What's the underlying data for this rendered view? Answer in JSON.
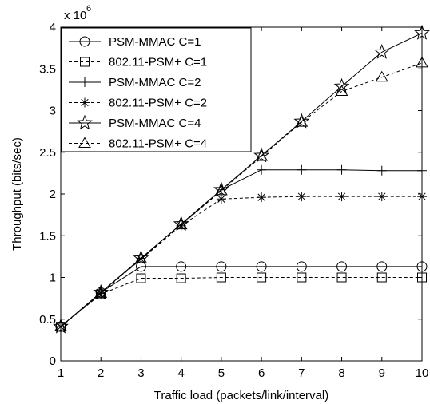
{
  "chart_data": {
    "type": "line",
    "xlabel": "Traffic load (packets/link/interval)",
    "ylabel": "Throughput (bits/sec)",
    "y_multiplier": "x 10",
    "y_multiplier_exp": "6",
    "xlim": [
      1,
      10
    ],
    "ylim": [
      0,
      4
    ],
    "x_ticks": [
      1,
      2,
      3,
      4,
      5,
      6,
      7,
      8,
      9,
      10
    ],
    "y_ticks": [
      0,
      0.5,
      1,
      1.5,
      2,
      2.5,
      3,
      3.5,
      4
    ],
    "y_tick_labels": [
      "0",
      "0.5",
      "1",
      "1.5",
      "2",
      "2.5",
      "3",
      "3.5",
      "4"
    ],
    "grid": false,
    "legend_position": "top-left",
    "x": [
      1,
      2,
      3,
      4,
      5,
      6,
      7,
      8,
      9,
      10
    ],
    "series": [
      {
        "name": "PSM-MMAC      C=1",
        "marker": "circle",
        "dash": "solid",
        "values": [
          0.41,
          0.82,
          1.13,
          1.13,
          1.13,
          1.13,
          1.13,
          1.13,
          1.13,
          1.13
        ]
      },
      {
        "name": "802.11-PSM+  C=1",
        "marker": "square",
        "dash": "dashed",
        "values": [
          0.41,
          0.8,
          0.99,
          0.99,
          1.0,
          1.0,
          1.0,
          1.0,
          1.0,
          1.0
        ]
      },
      {
        "name": "PSM-MMAC      C=2",
        "marker": "plus",
        "dash": "solid",
        "values": [
          0.41,
          0.82,
          1.23,
          1.64,
          2.05,
          2.29,
          2.29,
          2.29,
          2.28,
          2.28
        ]
      },
      {
        "name": "802.11-PSM+  C=2",
        "marker": "asterisk",
        "dash": "dashed",
        "values": [
          0.41,
          0.81,
          1.22,
          1.62,
          1.94,
          1.96,
          1.97,
          1.97,
          1.97,
          1.97
        ]
      },
      {
        "name": "PSM-MMAC      C=4",
        "marker": "star",
        "dash": "solid",
        "values": [
          0.41,
          0.82,
          1.23,
          1.64,
          2.05,
          2.46,
          2.87,
          3.29,
          3.7,
          3.93
        ]
      },
      {
        "name": "802.11-PSM+  C=4",
        "marker": "triangle",
        "dash": "dashed",
        "values": [
          0.41,
          0.81,
          1.22,
          1.63,
          2.04,
          2.45,
          2.86,
          3.23,
          3.4,
          3.57
        ]
      }
    ]
  }
}
